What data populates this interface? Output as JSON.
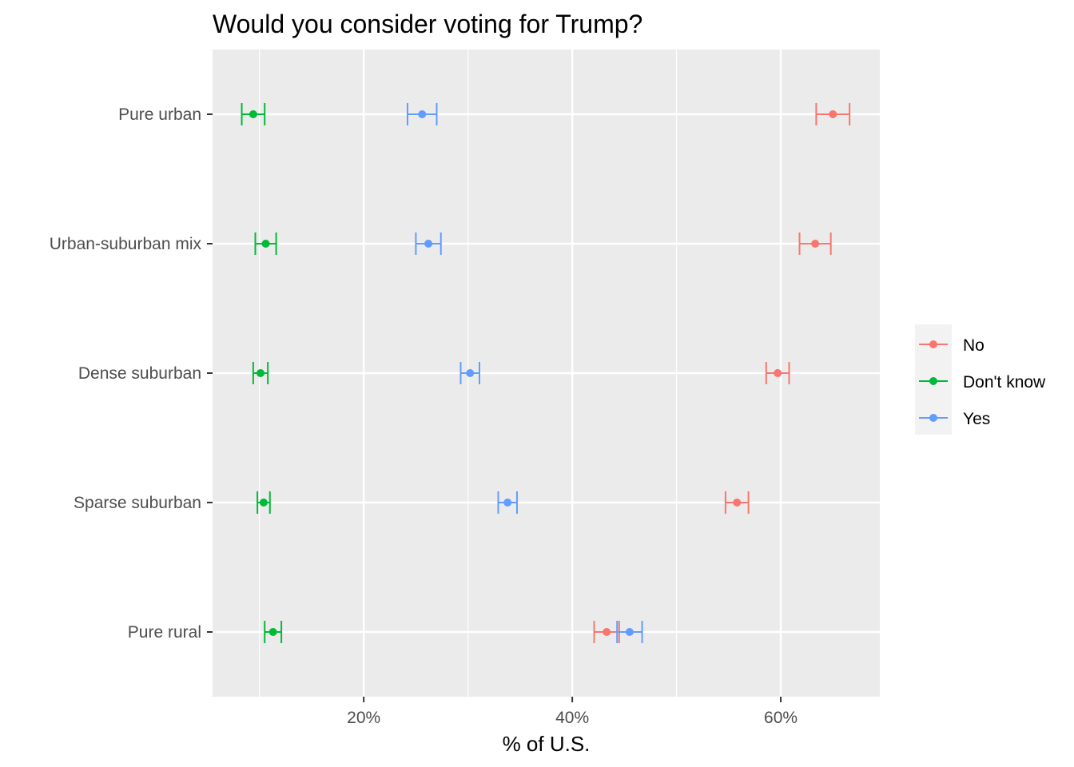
{
  "chart_data": {
    "type": "errorbar-dot",
    "title": "Would you consider voting for Trump?",
    "xlabel": "% of U.S.",
    "ylabel": "",
    "xlim": [
      5.5,
      69.5
    ],
    "x_ticks": [
      20,
      40,
      60
    ],
    "x_tick_labels": [
      "20%",
      "40%",
      "60%"
    ],
    "categories": [
      "Pure urban",
      "Urban-suburban mix",
      "Dense suburban",
      "Sparse suburban",
      "Pure rural"
    ],
    "grid": true,
    "legend_position": "right",
    "series": [
      {
        "name": "No",
        "color": "#F8766D",
        "values": [
          65.0,
          63.3,
          59.7,
          55.8,
          43.3
        ],
        "lower": [
          63.4,
          61.8,
          58.6,
          54.7,
          42.1
        ],
        "upper": [
          66.6,
          64.8,
          60.8,
          56.9,
          44.5
        ]
      },
      {
        "name": "Don't know",
        "color": "#00BA38",
        "values": [
          9.4,
          10.6,
          10.1,
          10.4,
          11.3
        ],
        "lower": [
          8.3,
          9.6,
          9.4,
          9.8,
          10.5
        ],
        "upper": [
          10.5,
          11.6,
          10.8,
          11.0,
          12.1
        ]
      },
      {
        "name": "Yes",
        "color": "#619CFF",
        "values": [
          25.6,
          26.2,
          30.2,
          33.8,
          45.5
        ],
        "lower": [
          24.2,
          25.0,
          29.3,
          32.9,
          44.3
        ],
        "upper": [
          27.0,
          27.4,
          31.1,
          34.7,
          46.7
        ]
      }
    ]
  }
}
